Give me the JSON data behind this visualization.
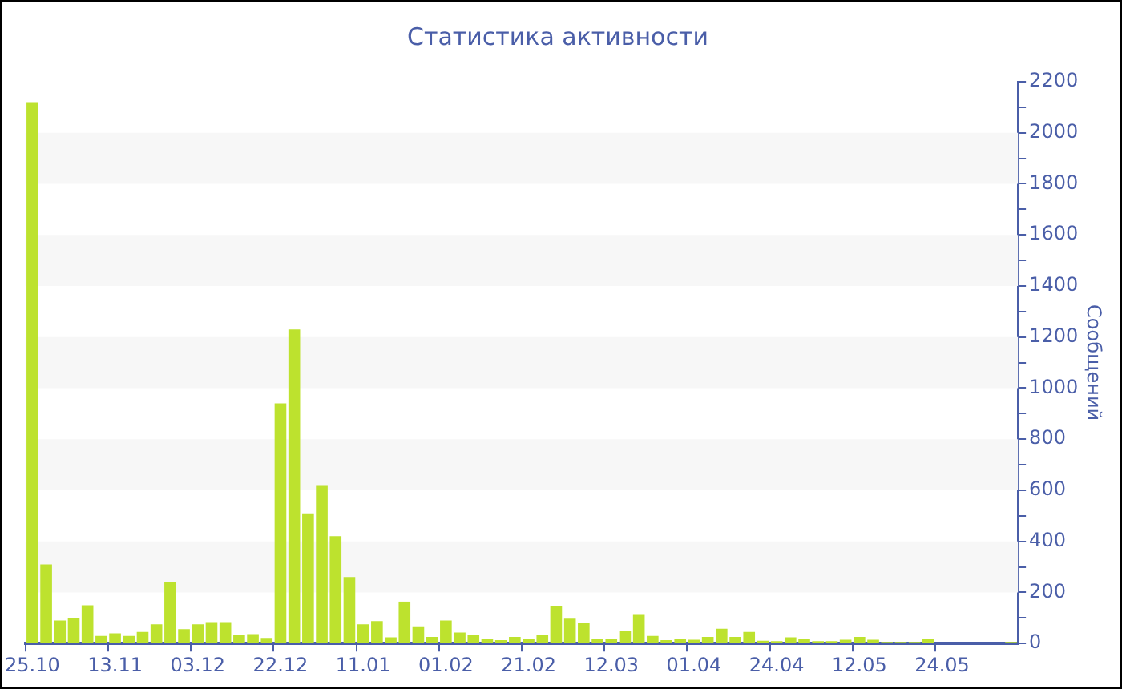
{
  "chart_data": {
    "type": "bar",
    "title": "Статистика активности",
    "ylabel": "Сообщений",
    "categories": [
      "25.10",
      null,
      null,
      null,
      null,
      null,
      "13.11",
      null,
      null,
      null,
      null,
      null,
      "03.12",
      null,
      null,
      null,
      null,
      null,
      "22.12",
      null,
      null,
      null,
      null,
      null,
      "11.01",
      null,
      null,
      null,
      null,
      null,
      "01.02",
      null,
      null,
      null,
      null,
      null,
      "21.02",
      null,
      null,
      null,
      null,
      null,
      "12.03",
      null,
      null,
      null,
      null,
      null,
      "01.04",
      null,
      null,
      null,
      null,
      null,
      "24.04",
      null,
      null,
      null,
      null,
      null,
      "12.05",
      null,
      null,
      null,
      null,
      null,
      "24.05",
      null,
      null,
      null,
      null,
      null
    ],
    "values": [
      2120,
      310,
      90,
      100,
      150,
      30,
      40,
      30,
      45,
      75,
      240,
      56,
      75,
      84,
      84,
      32,
      37,
      22,
      940,
      1230,
      510,
      620,
      420,
      260,
      75,
      88,
      24,
      164,
      67,
      26,
      90,
      43,
      32,
      17,
      13,
      26,
      19,
      32,
      147,
      97,
      80,
      19,
      19,
      50,
      112,
      30,
      13,
      19,
      15,
      26,
      58,
      26,
      45,
      11,
      9,
      24,
      17,
      9,
      9,
      15,
      26,
      15,
      6,
      6,
      6,
      17,
      null,
      null,
      null,
      null,
      null,
      6
    ],
    "color": "#bde22e",
    "ylim": [
      0,
      2200
    ],
    "yticks": [
      0,
      {
        "value": 100,
        "label": null
      },
      200,
      {
        "value": 300,
        "label": null
      },
      400,
      {
        "value": 500,
        "label": null
      },
      600,
      {
        "value": 700,
        "label": null
      },
      800,
      {
        "value": 900,
        "label": null
      },
      1000,
      {
        "value": 1100,
        "label": null
      },
      1200,
      {
        "value": 1300,
        "label": null
      },
      1400,
      {
        "value": 1500,
        "label": null
      },
      1600,
      {
        "value": 1700,
        "label": null
      },
      1800,
      {
        "value": 1900,
        "label": null
      },
      2000,
      {
        "value": 2100,
        "label": null
      },
      2200
    ],
    "bands": [
      {
        "axis": "y",
        "from": 200,
        "to": 400,
        "color": "#f7f7f7"
      },
      {
        "axis": "y",
        "from": 600,
        "to": 800,
        "color": "#f7f7f7"
      },
      {
        "axis": "y",
        "from": 1000,
        "to": 1200,
        "color": "#f7f7f7"
      },
      {
        "axis": "y",
        "from": 1400,
        "to": 1600,
        "color": "#f7f7f7"
      },
      {
        "axis": "y",
        "from": 1800,
        "to": 2000,
        "color": "#f7f7f7"
      }
    ],
    "grid": false,
    "legend": false
  }
}
